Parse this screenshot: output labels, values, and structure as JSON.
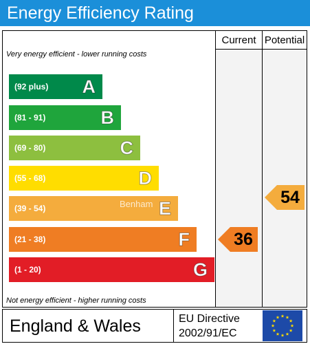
{
  "header": {
    "title": "Energy Efficiency Rating"
  },
  "columns": {
    "current": "Current",
    "potential": "Potential"
  },
  "notes": {
    "top": "Very energy efficient - lower running costs",
    "bottom": "Not energy efficient - higher running costs"
  },
  "colors": {
    "header": "#1b8fd9",
    "A": "#00894a",
    "B": "#1fa53c",
    "C": "#8dbf3f",
    "D": "#ffdd00",
    "E": "#f4ac3d",
    "F": "#ef7d23",
    "G": "#e21d26"
  },
  "chart_data": {
    "type": "bar",
    "categories": [
      "A",
      "B",
      "C",
      "D",
      "E",
      "F",
      "G"
    ],
    "ranges": [
      "(92 plus)",
      "(81 - 91)",
      "(69 - 80)",
      "(55 - 68)",
      "(39 - 54)",
      "(21 - 38)",
      "(1 - 20)"
    ],
    "bands": [
      {
        "letter": "A",
        "range": "(92 plus)",
        "min": 92,
        "max": 100
      },
      {
        "letter": "B",
        "range": "(81 - 91)",
        "min": 81,
        "max": 91
      },
      {
        "letter": "C",
        "range": "(69 - 80)",
        "min": 69,
        "max": 80
      },
      {
        "letter": "D",
        "range": "(55 - 68)",
        "min": 55,
        "max": 68
      },
      {
        "letter": "E",
        "range": "(39 - 54)",
        "min": 39,
        "max": 54
      },
      {
        "letter": "F",
        "range": "(21 - 38)",
        "min": 21,
        "max": 38
      },
      {
        "letter": "G",
        "range": "(1 - 20)",
        "min": 1,
        "max": 20
      }
    ],
    "current": {
      "label": "Current",
      "value": 36,
      "band": "F"
    },
    "potential": {
      "label": "Potential",
      "value": 54,
      "band": "E"
    }
  },
  "footer": {
    "region": "England & Wales",
    "directive_line1": "EU Directive",
    "directive_line2": "2002/91/EC",
    "flag_icon": "eu-flag-icon"
  },
  "watermark": "Benham"
}
